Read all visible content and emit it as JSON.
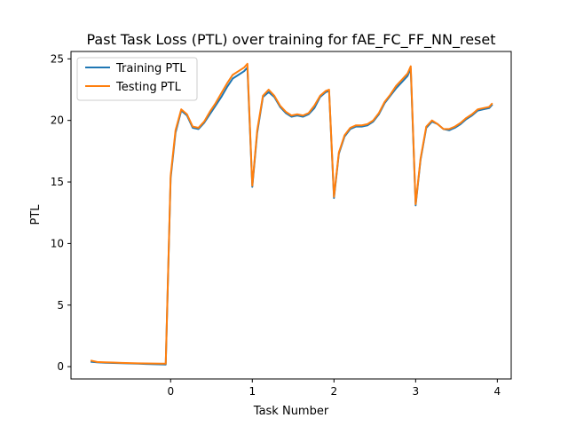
{
  "chart_data": {
    "type": "line",
    "title": "Past Task Loss (PTL) over training for fAE_FC_FF_NN_reset",
    "xlabel": "Task Number",
    "ylabel": "PTL",
    "xlim": [
      -1.22,
      4.17
    ],
    "ylim": [
      -1.0,
      25.6
    ],
    "xticks": [
      0,
      1,
      2,
      3,
      4
    ],
    "yticks": [
      0,
      5,
      10,
      15,
      20,
      25
    ],
    "grid": false,
    "legend_position": "top-left",
    "series": [
      {
        "name": "Training PTL",
        "color": "#1f77b4",
        "x": [
          -0.98,
          -0.9,
          -0.8,
          -0.7,
          -0.6,
          -0.5,
          -0.4,
          -0.3,
          -0.2,
          -0.1,
          -0.06,
          0.0,
          0.06,
          0.13,
          0.2,
          0.27,
          0.34,
          0.41,
          0.48,
          0.55,
          0.62,
          0.69,
          0.76,
          0.83,
          0.9,
          0.94,
          1.0,
          1.06,
          1.13,
          1.2,
          1.27,
          1.34,
          1.41,
          1.48,
          1.55,
          1.62,
          1.69,
          1.76,
          1.83,
          1.9,
          1.94,
          2.0,
          2.06,
          2.13,
          2.2,
          2.27,
          2.34,
          2.41,
          2.48,
          2.55,
          2.62,
          2.69,
          2.76,
          2.83,
          2.9,
          2.94,
          3.0,
          3.06,
          3.13,
          3.2,
          3.27,
          3.34,
          3.41,
          3.48,
          3.55,
          3.62,
          3.69,
          3.76,
          3.83,
          3.9,
          3.94
        ],
        "values": [
          0.4,
          0.35,
          0.32,
          0.3,
          0.28,
          0.26,
          0.24,
          0.22,
          0.2,
          0.18,
          0.17,
          15.3,
          19.0,
          20.8,
          20.4,
          19.4,
          19.3,
          19.8,
          20.5,
          21.2,
          21.9,
          22.7,
          23.4,
          23.7,
          24.0,
          24.3,
          14.6,
          19.0,
          21.9,
          22.3,
          21.9,
          21.1,
          20.6,
          20.3,
          20.4,
          20.3,
          20.5,
          21.0,
          21.9,
          22.3,
          22.4,
          13.7,
          17.3,
          18.7,
          19.3,
          19.5,
          19.5,
          19.6,
          19.9,
          20.5,
          21.4,
          22.0,
          22.6,
          23.1,
          23.6,
          24.2,
          13.1,
          16.8,
          19.4,
          19.9,
          19.7,
          19.3,
          19.2,
          19.4,
          19.7,
          20.1,
          20.4,
          20.8,
          20.9,
          21.0,
          21.3
        ]
      },
      {
        "name": "Testing PTL",
        "color": "#ff7f0e",
        "x": [
          -0.98,
          -0.9,
          -0.8,
          -0.7,
          -0.6,
          -0.5,
          -0.4,
          -0.3,
          -0.2,
          -0.1,
          -0.06,
          0.0,
          0.06,
          0.13,
          0.2,
          0.27,
          0.34,
          0.41,
          0.48,
          0.55,
          0.62,
          0.69,
          0.76,
          0.83,
          0.9,
          0.94,
          1.0,
          1.06,
          1.13,
          1.2,
          1.27,
          1.34,
          1.41,
          1.48,
          1.55,
          1.62,
          1.69,
          1.76,
          1.83,
          1.9,
          1.94,
          2.0,
          2.06,
          2.13,
          2.2,
          2.27,
          2.34,
          2.41,
          2.48,
          2.55,
          2.62,
          2.69,
          2.76,
          2.83,
          2.9,
          2.94,
          3.0,
          3.06,
          3.13,
          3.2,
          3.27,
          3.34,
          3.41,
          3.48,
          3.55,
          3.62,
          3.69,
          3.76,
          3.83,
          3.9,
          3.94
        ],
        "values": [
          0.5,
          0.38,
          0.35,
          0.33,
          0.31,
          0.29,
          0.27,
          0.26,
          0.25,
          0.24,
          0.24,
          15.5,
          19.2,
          20.9,
          20.5,
          19.5,
          19.4,
          19.9,
          20.7,
          21.4,
          22.2,
          23.0,
          23.7,
          24.0,
          24.3,
          24.6,
          14.7,
          19.2,
          22.0,
          22.5,
          22.0,
          21.2,
          20.7,
          20.4,
          20.5,
          20.4,
          20.6,
          21.2,
          22.0,
          22.4,
          22.5,
          13.8,
          17.4,
          18.8,
          19.4,
          19.6,
          19.6,
          19.7,
          20.0,
          20.6,
          21.5,
          22.1,
          22.8,
          23.3,
          23.8,
          24.4,
          13.2,
          16.9,
          19.5,
          20.0,
          19.7,
          19.3,
          19.3,
          19.5,
          19.8,
          20.2,
          20.5,
          20.9,
          21.0,
          21.1,
          21.4
        ]
      }
    ]
  }
}
